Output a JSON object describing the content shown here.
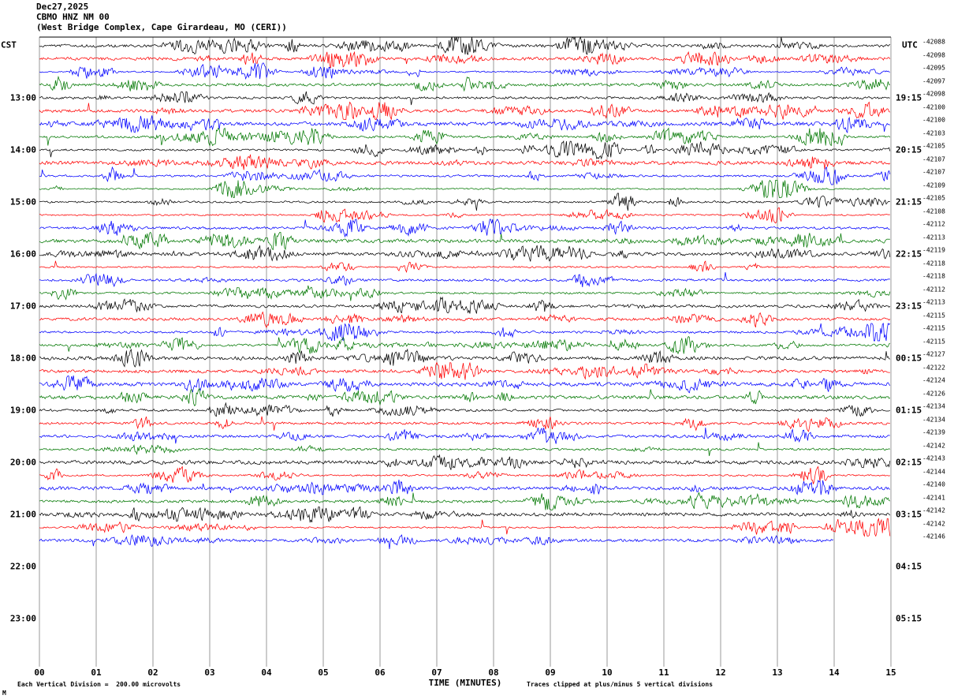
{
  "header": {
    "date": "Dec27,2025",
    "station": "CBMO HNZ NM 00",
    "location": "(West Bridge Complex, Cape Girardeau, MO (CERI))"
  },
  "axes": {
    "left_unit": "CST",
    "right_unit": "UTC",
    "left_hours": [
      "13:00",
      "14:00",
      "15:00",
      "16:00",
      "17:00",
      "18:00",
      "19:00",
      "20:00",
      "21:00",
      "22:00",
      "23:00"
    ],
    "right_hours": [
      "19:15",
      "20:15",
      "21:15",
      "22:15",
      "23:15",
      "00:15",
      "01:15",
      "02:15",
      "03:15",
      "04:15",
      "05:15"
    ],
    "x_ticks": [
      "00",
      "01",
      "02",
      "03",
      "04",
      "05",
      "06",
      "07",
      "08",
      "09",
      "10",
      "11",
      "12",
      "13",
      "14",
      "15"
    ],
    "x_title": "TIME (MINUTES)"
  },
  "footer": {
    "left_note": "Each Vertical Division =  200.00 microvolts",
    "right_note": "Traces clipped at plus/minus 5 vertical divisions",
    "corner_mark": "M"
  },
  "chart_data": {
    "type": "line",
    "subtype": "seismogram-helicorder",
    "title": "CBMO HNZ NM 00 helicorder, Dec27,2025",
    "xlabel": "TIME (MINUTES)",
    "x_range_minutes": [
      0,
      15
    ],
    "minutes_per_row": 15,
    "vertical_division_microvolts": 200.0,
    "clip_divisions": 5,
    "grid": true,
    "trace_color_cycle": [
      "#000000",
      "#ff0000",
      "#0000ff",
      "#007700"
    ],
    "gridline_color": "#999999",
    "rows": [
      {
        "start_cst": "12:00",
        "color": "#000000",
        "offset_label": "-42088",
        "end_minute": 15
      },
      {
        "start_cst": "12:15",
        "color": "#ff0000",
        "offset_label": "-42098",
        "end_minute": 15
      },
      {
        "start_cst": "12:30",
        "color": "#0000ff",
        "offset_label": "-42095",
        "end_minute": 15
      },
      {
        "start_cst": "12:45",
        "color": "#007700",
        "offset_label": "-42097",
        "end_minute": 15
      },
      {
        "start_cst": "13:00",
        "color": "#000000",
        "offset_label": "-42098",
        "end_minute": 15
      },
      {
        "start_cst": "13:15",
        "color": "#ff0000",
        "offset_label": "-42100",
        "end_minute": 15
      },
      {
        "start_cst": "13:30",
        "color": "#0000ff",
        "offset_label": "-42100",
        "end_minute": 15
      },
      {
        "start_cst": "13:45",
        "color": "#007700",
        "offset_label": "-42103",
        "end_minute": 15
      },
      {
        "start_cst": "14:00",
        "color": "#000000",
        "offset_label": "-42105",
        "end_minute": 15
      },
      {
        "start_cst": "14:15",
        "color": "#ff0000",
        "offset_label": "-42107",
        "end_minute": 15
      },
      {
        "start_cst": "14:30",
        "color": "#0000ff",
        "offset_label": "-42107",
        "end_minute": 15
      },
      {
        "start_cst": "14:45",
        "color": "#007700",
        "offset_label": "-42109",
        "end_minute": 15
      },
      {
        "start_cst": "15:00",
        "color": "#000000",
        "offset_label": "-42105",
        "end_minute": 15
      },
      {
        "start_cst": "15:15",
        "color": "#ff0000",
        "offset_label": "-42108",
        "end_minute": 15
      },
      {
        "start_cst": "15:30",
        "color": "#0000ff",
        "offset_label": "-42112",
        "end_minute": 15
      },
      {
        "start_cst": "15:45",
        "color": "#007700",
        "offset_label": "-42113",
        "end_minute": 15
      },
      {
        "start_cst": "16:00",
        "color": "#000000",
        "offset_label": "-42119",
        "end_minute": 15
      },
      {
        "start_cst": "16:15",
        "color": "#ff0000",
        "offset_label": "-42118",
        "end_minute": 15
      },
      {
        "start_cst": "16:30",
        "color": "#0000ff",
        "offset_label": "-42118",
        "end_minute": 15
      },
      {
        "start_cst": "16:45",
        "color": "#007700",
        "offset_label": "-42112",
        "end_minute": 15
      },
      {
        "start_cst": "17:00",
        "color": "#000000",
        "offset_label": "-42113",
        "end_minute": 15
      },
      {
        "start_cst": "17:15",
        "color": "#ff0000",
        "offset_label": "-42115",
        "end_minute": 15
      },
      {
        "start_cst": "17:30",
        "color": "#0000ff",
        "offset_label": "-42115",
        "end_minute": 15
      },
      {
        "start_cst": "17:45",
        "color": "#007700",
        "offset_label": "-42115",
        "end_minute": 15
      },
      {
        "start_cst": "18:00",
        "color": "#000000",
        "offset_label": "-42127",
        "end_minute": 15
      },
      {
        "start_cst": "18:15",
        "color": "#ff0000",
        "offset_label": "-42122",
        "end_minute": 15
      },
      {
        "start_cst": "18:30",
        "color": "#0000ff",
        "offset_label": "-42124",
        "end_minute": 15
      },
      {
        "start_cst": "18:45",
        "color": "#007700",
        "offset_label": "-42126",
        "end_minute": 15
      },
      {
        "start_cst": "19:00",
        "color": "#000000",
        "offset_label": "-42134",
        "end_minute": 15
      },
      {
        "start_cst": "19:15",
        "color": "#ff0000",
        "offset_label": "-42134",
        "end_minute": 15
      },
      {
        "start_cst": "19:30",
        "color": "#0000ff",
        "offset_label": "-42139",
        "end_minute": 15
      },
      {
        "start_cst": "19:45",
        "color": "#007700",
        "offset_label": "-42142",
        "end_minute": 15
      },
      {
        "start_cst": "20:00",
        "color": "#000000",
        "offset_label": "-42143",
        "end_minute": 15
      },
      {
        "start_cst": "20:15",
        "color": "#ff0000",
        "offset_label": "-42144",
        "end_minute": 15
      },
      {
        "start_cst": "20:30",
        "color": "#0000ff",
        "offset_label": "-42140",
        "end_minute": 15
      },
      {
        "start_cst": "20:45",
        "color": "#007700",
        "offset_label": "-42141",
        "end_minute": 15
      },
      {
        "start_cst": "21:00",
        "color": "#000000",
        "offset_label": "-42142",
        "end_minute": 15
      },
      {
        "start_cst": "21:15",
        "color": "#ff0000",
        "offset_label": "-42142",
        "end_minute": 15
      },
      {
        "start_cst": "21:30",
        "color": "#0000ff",
        "offset_label": "-42146",
        "end_minute": 14
      }
    ]
  }
}
